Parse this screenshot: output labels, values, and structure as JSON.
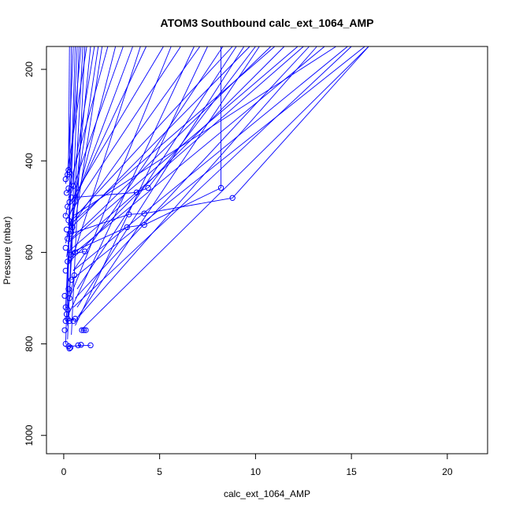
{
  "chart_data": {
    "type": "line",
    "title": "ATOM3 Southbound calc_ext_1064_AMP",
    "xlabel": "calc_ext_1064_AMP",
    "ylabel": "Pressure (mbar)",
    "xlim": [
      -0.9,
      22.1
    ],
    "ylim": [
      1040,
      150
    ],
    "y_reversed": true,
    "x_ticks": [
      0,
      5,
      10,
      15,
      20
    ],
    "y_ticks": [
      200,
      400,
      600,
      800,
      1000
    ],
    "series_color": "#0000ff",
    "grid": false,
    "markers": "open-circle",
    "points": [
      [
        0.1,
        800
      ],
      [
        0.25,
        805
      ],
      [
        0.3,
        810
      ],
      [
        0.35,
        808
      ],
      [
        0.75,
        803
      ],
      [
        0.9,
        802
      ],
      [
        1.4,
        803
      ],
      [
        0.05,
        770
      ],
      [
        0.1,
        750
      ],
      [
        0.15,
        735
      ],
      [
        0.2,
        745
      ],
      [
        0.3,
        750
      ],
      [
        0.5,
        750
      ],
      [
        0.6,
        745
      ],
      [
        0.95,
        770
      ],
      [
        1.05,
        770
      ],
      [
        1.15,
        770
      ],
      [
        0.1,
        720
      ],
      [
        0.2,
        725
      ],
      [
        0.3,
        700
      ],
      [
        0.05,
        695
      ],
      [
        0.25,
        680
      ],
      [
        0.4,
        660
      ],
      [
        0.55,
        650
      ],
      [
        0.1,
        640
      ],
      [
        0.2,
        620
      ],
      [
        0.35,
        605
      ],
      [
        0.6,
        600
      ],
      [
        1.1,
        598
      ],
      [
        0.1,
        590
      ],
      [
        0.2,
        570
      ],
      [
        0.3,
        560
      ],
      [
        0.15,
        550
      ],
      [
        0.45,
        545
      ],
      [
        0.25,
        530
      ],
      [
        0.1,
        520
      ],
      [
        0.2,
        500
      ],
      [
        0.3,
        490
      ],
      [
        0.4,
        480
      ],
      [
        0.15,
        470
      ],
      [
        0.25,
        460
      ],
      [
        0.5,
        455
      ],
      [
        0.1,
        440
      ],
      [
        0.2,
        430
      ],
      [
        0.3,
        425
      ],
      [
        0.25,
        420
      ],
      [
        3.3,
        545
      ],
      [
        3.4,
        517
      ],
      [
        3.8,
        469
      ],
      [
        4.2,
        540
      ],
      [
        4.2,
        515
      ],
      [
        4.4,
        459
      ],
      [
        8.2,
        459
      ],
      [
        8.8,
        481
      ]
    ],
    "segments": [
      [
        [
          0.2,
          440
        ],
        [
          0.5,
          150
        ]
      ],
      [
        [
          0.3,
          430
        ],
        [
          0.9,
          150
        ]
      ],
      [
        [
          0.25,
          420
        ],
        [
          0.3,
          150
        ]
      ],
      [
        [
          0.1,
          450
        ],
        [
          1.2,
          150
        ]
      ],
      [
        [
          0.4,
          460
        ],
        [
          1.6,
          150
        ]
      ],
      [
        [
          0.2,
          470
        ],
        [
          2.3,
          150
        ]
      ],
      [
        [
          0.3,
          480
        ],
        [
          3.1,
          150
        ]
      ],
      [
        [
          0.5,
          490
        ],
        [
          4.3,
          150
        ]
      ],
      [
        [
          0.2,
          500
        ],
        [
          5.2,
          150
        ]
      ],
      [
        [
          0.4,
          510
        ],
        [
          6.1,
          150
        ]
      ],
      [
        [
          0.3,
          520
        ],
        [
          3.6,
          150
        ]
      ],
      [
        [
          0.6,
          530
        ],
        [
          7.1,
          150
        ]
      ],
      [
        [
          0.2,
          540
        ],
        [
          8.8,
          150
        ]
      ],
      [
        [
          0.3,
          550
        ],
        [
          9.7,
          150
        ]
      ],
      [
        [
          0.5,
          560
        ],
        [
          2.0,
          150
        ]
      ],
      [
        [
          0.4,
          570
        ],
        [
          10.8,
          150
        ]
      ],
      [
        [
          0.2,
          580
        ],
        [
          12.2,
          150
        ]
      ],
      [
        [
          0.6,
          600
        ],
        [
          13.6,
          150
        ]
      ],
      [
        [
          0.3,
          620
        ],
        [
          11.5,
          150
        ]
      ],
      [
        [
          0.5,
          640
        ],
        [
          14.8,
          150
        ]
      ],
      [
        [
          0.4,
          660
        ],
        [
          15.7,
          150
        ]
      ],
      [
        [
          0.7,
          680
        ],
        [
          9.0,
          150
        ]
      ],
      [
        [
          0.6,
          700
        ],
        [
          12.8,
          150
        ]
      ],
      [
        [
          0.5,
          720
        ],
        [
          15.0,
          150
        ]
      ],
      [
        [
          0.8,
          740
        ],
        [
          13.2,
          150
        ]
      ],
      [
        [
          0.6,
          750
        ],
        [
          10.2,
          150
        ]
      ],
      [
        [
          0.9,
          770
        ],
        [
          15.9,
          150
        ]
      ],
      [
        [
          0.2,
          760
        ],
        [
          0.4,
          150
        ]
      ],
      [
        [
          0.1,
          720
        ],
        [
          0.7,
          150
        ]
      ],
      [
        [
          0.3,
          690
        ],
        [
          1.0,
          150
        ]
      ],
      [
        [
          0.2,
          650
        ],
        [
          1.4,
          150
        ]
      ],
      [
        [
          0.15,
          610
        ],
        [
          1.8,
          150
        ]
      ],
      [
        [
          0.1,
          580
        ],
        [
          2.7,
          150
        ]
      ],
      [
        [
          0.4,
          620
        ],
        [
          4.0,
          150
        ]
      ],
      [
        [
          0.3,
          700
        ],
        [
          5.6,
          150
        ]
      ],
      [
        [
          0.2,
          740
        ],
        [
          6.8,
          150
        ]
      ],
      [
        [
          0.6,
          760
        ],
        [
          7.5,
          150
        ]
      ],
      [
        [
          0.5,
          640
        ],
        [
          8.3,
          150
        ]
      ],
      [
        [
          0.7,
          720
        ],
        [
          9.4,
          150
        ]
      ],
      [
        [
          0.1,
          800
        ],
        [
          0.6,
          150
        ]
      ],
      [
        [
          0.2,
          790
        ],
        [
          0.8,
          150
        ]
      ],
      [
        [
          0.4,
          780
        ],
        [
          1.1,
          150
        ]
      ],
      [
        [
          0.3,
          540
        ],
        [
          11.0,
          150
        ]
      ],
      [
        [
          0.2,
          600
        ],
        [
          12.5,
          150
        ]
      ],
      [
        [
          0.5,
          520
        ],
        [
          14.2,
          150
        ]
      ],
      [
        [
          3.3,
          545
        ],
        [
          4.2,
          540
        ]
      ],
      [
        [
          3.4,
          517
        ],
        [
          4.2,
          515
        ]
      ],
      [
        [
          3.8,
          469
        ],
        [
          4.4,
          459
        ]
      ],
      [
        [
          4.2,
          540
        ],
        [
          8.2,
          459
        ]
      ],
      [
        [
          4.2,
          515
        ],
        [
          8.8,
          481
        ]
      ],
      [
        [
          8.2,
          459
        ],
        [
          8.2,
          150
        ]
      ],
      [
        [
          8.8,
          481
        ],
        [
          15.9,
          150
        ]
      ],
      [
        [
          4.4,
          459
        ],
        [
          10.0,
          150
        ]
      ],
      [
        [
          3.3,
          545
        ],
        [
          0.4,
          600
        ]
      ],
      [
        [
          3.4,
          517
        ],
        [
          0.3,
          560
        ]
      ],
      [
        [
          3.8,
          469
        ],
        [
          0.5,
          480
        ]
      ],
      [
        [
          0.3,
          805
        ],
        [
          1.4,
          803
        ]
      ],
      [
        [
          0.75,
          803
        ],
        [
          0.9,
          802
        ]
      ],
      [
        [
          0.25,
          805
        ],
        [
          0.35,
          808
        ]
      ],
      [
        [
          0.95,
          770
        ],
        [
          1.15,
          770
        ]
      ],
      [
        [
          0.3,
          750
        ],
        [
          0.6,
          745
        ]
      ],
      [
        [
          0.2,
          725
        ],
        [
          0.55,
          650
        ]
      ],
      [
        [
          0.35,
          605
        ],
        [
          1.1,
          598
        ]
      ],
      [
        [
          0.25,
          530
        ],
        [
          0.45,
          545
        ]
      ],
      [
        [
          0.15,
          470
        ],
        [
          0.5,
          455
        ]
      ],
      [
        [
          0.1,
          520
        ],
        [
          0.2,
          500
        ]
      ]
    ]
  }
}
